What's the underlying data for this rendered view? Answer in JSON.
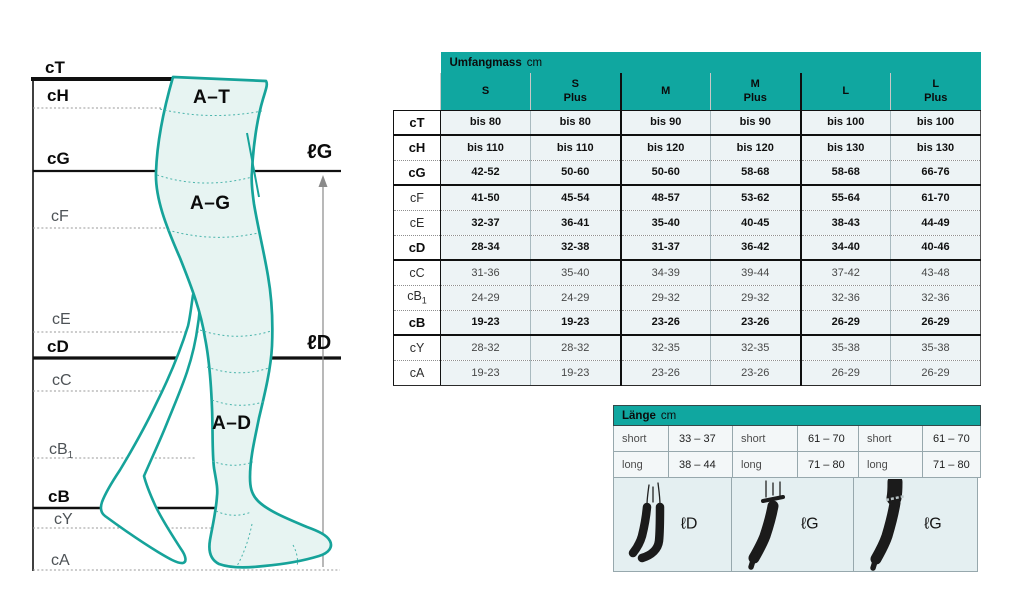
{
  "colors": {
    "teal_header": "#10a7a0",
    "table_cell": "#edf3f5",
    "stocking_fill": "#e7f4f2",
    "teal_outline": "#16a39a"
  },
  "diagram": {
    "measure_labels": [
      {
        "text": "cT",
        "bold": true
      },
      {
        "text": "cH",
        "bold": true
      },
      {
        "text": "cG",
        "bold": true
      },
      {
        "text": "cF",
        "bold": false
      },
      {
        "text": "cE",
        "bold": false
      },
      {
        "text": "cD",
        "bold": true
      },
      {
        "text": "cC",
        "bold": false
      },
      {
        "text": "cB",
        "sub": "1",
        "bold": false
      },
      {
        "text": "cB",
        "bold": true
      },
      {
        "text": "cY",
        "bold": false
      },
      {
        "text": "cA",
        "bold": false
      }
    ],
    "zones": [
      {
        "text": "A–T"
      },
      {
        "text": "A–G"
      },
      {
        "text": "A–D"
      }
    ],
    "lengths": [
      {
        "text": "ℓG"
      },
      {
        "text": "ℓD"
      }
    ]
  },
  "umfang_table": {
    "title": "Umfangmass",
    "unit": "cm",
    "sizes": [
      {
        "l1": "S",
        "l2": ""
      },
      {
        "l1": "S",
        "l2": "Plus"
      },
      {
        "l1": "M",
        "l2": ""
      },
      {
        "l1": "M",
        "l2": "Plus"
      },
      {
        "l1": "L",
        "l2": ""
      },
      {
        "l1": "L",
        "l2": "Plus"
      }
    ],
    "rows": [
      {
        "label": "cT",
        "label_bold": true,
        "values_bold": true,
        "divider": "thick",
        "values": [
          "bis 80",
          "bis 80",
          "bis 90",
          "bis 90",
          "bis 100",
          "bis 100"
        ]
      },
      {
        "label": "cH",
        "label_bold": true,
        "values_bold": true,
        "divider": "dotted",
        "values": [
          "bis 110",
          "bis 110",
          "bis 120",
          "bis 120",
          "bis 130",
          "bis 130"
        ]
      },
      {
        "label": "cG",
        "label_bold": true,
        "values_bold": true,
        "divider": "thick",
        "values": [
          "42-52",
          "50-60",
          "50-60",
          "58-68",
          "58-68",
          "66-76"
        ]
      },
      {
        "label": "cF",
        "label_bold": false,
        "values_bold": true,
        "divider": "dotted",
        "values": [
          "41-50",
          "45-54",
          "48-57",
          "53-62",
          "55-64",
          "61-70"
        ]
      },
      {
        "label": "cE",
        "label_bold": false,
        "values_bold": true,
        "divider": "dotted",
        "values": [
          "32-37",
          "36-41",
          "35-40",
          "40-45",
          "38-43",
          "44-49"
        ]
      },
      {
        "label": "cD",
        "label_bold": true,
        "values_bold": true,
        "divider": "thick",
        "values": [
          "28-34",
          "32-38",
          "31-37",
          "36-42",
          "34-40",
          "40-46"
        ]
      },
      {
        "label": "cC",
        "label_bold": false,
        "values_bold": false,
        "divider": "dotted",
        "values": [
          "31-36",
          "35-40",
          "34-39",
          "39-44",
          "37-42",
          "43-48"
        ]
      },
      {
        "label": "cB",
        "sub": "1",
        "label_bold": false,
        "values_bold": false,
        "divider": "dotted",
        "values": [
          "24-29",
          "24-29",
          "29-32",
          "29-32",
          "32-36",
          "32-36"
        ]
      },
      {
        "label": "cB",
        "label_bold": true,
        "values_bold": true,
        "divider": "thick",
        "values": [
          "19-23",
          "19-23",
          "23-26",
          "23-26",
          "26-29",
          "26-29"
        ]
      },
      {
        "label": "cY",
        "label_bold": false,
        "values_bold": false,
        "divider": "dotted",
        "values": [
          "28-32",
          "28-32",
          "32-35",
          "32-35",
          "35-38",
          "35-38"
        ]
      },
      {
        "label": "cA",
        "label_bold": false,
        "values_bold": false,
        "divider": "end",
        "values": [
          "19-23",
          "19-23",
          "23-26",
          "23-26",
          "26-29",
          "26-29"
        ]
      }
    ]
  },
  "laenge_table": {
    "title": "Länge",
    "unit": "cm",
    "rows": [
      [
        "short",
        "33 – 37",
        "short",
        "61 – 70",
        "short",
        "61 – 70"
      ],
      [
        "long",
        "38 – 44",
        "long",
        "71 – 80",
        "long",
        "71 – 80"
      ]
    ],
    "images": [
      {
        "label": "ℓD",
        "style": "knee-high"
      },
      {
        "label": "ℓG",
        "style": "thigh-high"
      },
      {
        "label": "ℓG",
        "style": "thigh-high-top"
      }
    ]
  }
}
